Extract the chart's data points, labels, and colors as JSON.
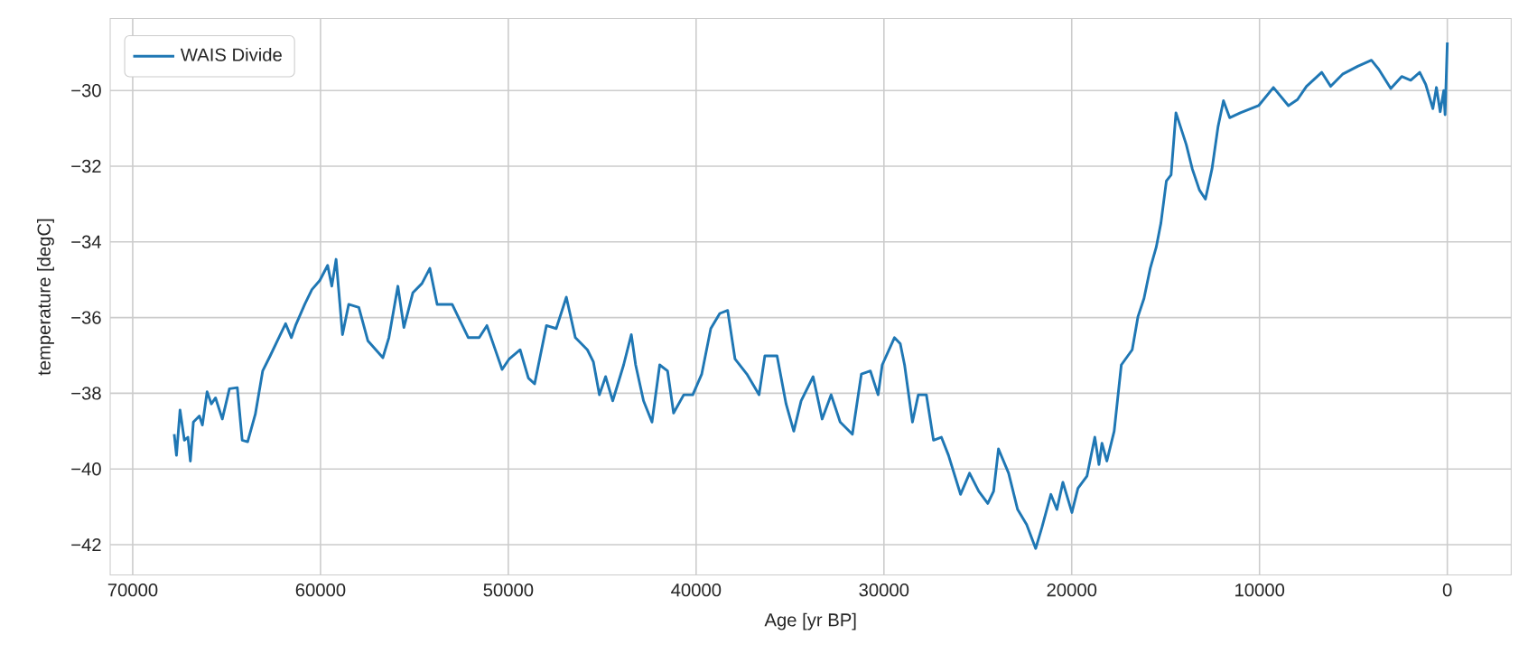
{
  "chart_data": {
    "type": "line",
    "xlabel": "Age [yr BP]",
    "ylabel": "temperature [degC]",
    "xlim": [
      71200,
      -3400
    ],
    "ylim": [
      -42.8,
      -28.1
    ],
    "xticks": [
      70000,
      60000,
      50000,
      40000,
      30000,
      20000,
      10000,
      0
    ],
    "yticks": [
      {
        "value": -42,
        "label": "−42"
      },
      {
        "value": -40,
        "label": "−40"
      },
      {
        "value": -38,
        "label": "−38"
      },
      {
        "value": -36,
        "label": "−36"
      },
      {
        "value": -34,
        "label": "−34"
      },
      {
        "value": -32,
        "label": "−32"
      },
      {
        "value": -30,
        "label": "−30"
      }
    ],
    "grid": true,
    "legend": "top left",
    "line_style": "solid",
    "marker": "none",
    "series": [
      {
        "name": "WAIS Divide",
        "color": "#1f77b4",
        "x": [
          67790,
          67670,
          67480,
          67250,
          67060,
          66930,
          66770,
          66450,
          66290,
          66040,
          65810,
          65590,
          65230,
          64850,
          64430,
          64170,
          63880,
          63470,
          63080,
          62670,
          62220,
          61860,
          61550,
          61330,
          60840,
          60460,
          60040,
          59620,
          59400,
          59170,
          58830,
          58500,
          57960,
          57480,
          56680,
          56360,
          55880,
          55560,
          55080,
          54600,
          54180,
          53790,
          52990,
          52130,
          51550,
          51140,
          50750,
          50330,
          49950,
          49370,
          48930,
          48600,
          47970,
          47450,
          46910,
          46430,
          45790,
          45470,
          45150,
          44820,
          44440,
          43860,
          43450,
          43220,
          42800,
          42350,
          41940,
          41520,
          41200,
          40660,
          40180,
          39700,
          39220,
          38740,
          38320,
          37930,
          37300,
          36650,
          36340,
          35690,
          35210,
          34800,
          34410,
          33770,
          33290,
          32810,
          32330,
          31680,
          31200,
          30720,
          30310,
          30090,
          29440,
          29130,
          28900,
          28480,
          28170,
          27740,
          27360,
          26940,
          26560,
          25920,
          25440,
          24950,
          24470,
          24160,
          23900,
          23360,
          22880,
          22400,
          21920,
          21590,
          21110,
          20790,
          20470,
          19990,
          19670,
          19190,
          18770,
          18550,
          18390,
          18130,
          17740,
          17360,
          16780,
          16470,
          16150,
          15820,
          15500,
          15250,
          14960,
          14710,
          14450,
          13900,
          13580,
          13200,
          12880,
          12530,
          12210,
          11920,
          11590,
          11020,
          10050,
          9260,
          8460,
          7980,
          7500,
          6690,
          6210,
          5580,
          4770,
          4040,
          3650,
          3010,
          2430,
          1950,
          1470,
          1150,
          770,
          580,
          380,
          190,
          120,
          0
        ],
        "values": [
          -39.08,
          -39.64,
          -38.44,
          -39.24,
          -39.16,
          -39.79,
          -38.76,
          -38.6,
          -38.84,
          -37.96,
          -38.28,
          -38.12,
          -38.68,
          -37.88,
          -37.85,
          -39.24,
          -39.28,
          -38.55,
          -37.41,
          -37.0,
          -36.53,
          -36.16,
          -36.53,
          -36.21,
          -35.65,
          -35.26,
          -35.02,
          -34.62,
          -35.17,
          -34.46,
          -36.45,
          -35.65,
          -35.73,
          -36.61,
          -37.06,
          -36.53,
          -35.17,
          -36.26,
          -35.34,
          -35.1,
          -34.7,
          -35.65,
          -35.65,
          -36.53,
          -36.53,
          -36.21,
          -36.77,
          -37.37,
          -37.09,
          -36.85,
          -37.6,
          -37.75,
          -36.21,
          -36.29,
          -35.46,
          -36.53,
          -36.85,
          -37.17,
          -38.04,
          -37.56,
          -38.2,
          -37.25,
          -36.45,
          -37.25,
          -38.2,
          -38.76,
          -37.25,
          -37.41,
          -38.52,
          -38.04,
          -38.04,
          -37.49,
          -36.29,
          -35.89,
          -35.81,
          -37.09,
          -37.49,
          -38.04,
          -37.01,
          -37.01,
          -38.28,
          -39.0,
          -38.2,
          -37.56,
          -38.68,
          -38.04,
          -38.76,
          -39.08,
          -37.49,
          -37.41,
          -38.04,
          -37.25,
          -36.53,
          -36.69,
          -37.25,
          -38.76,
          -38.04,
          -38.04,
          -39.24,
          -39.16,
          -39.64,
          -40.67,
          -40.11,
          -40.59,
          -40.91,
          -40.59,
          -39.47,
          -40.11,
          -41.07,
          -41.47,
          -42.1,
          -41.55,
          -40.67,
          -41.07,
          -40.35,
          -41.15,
          -40.51,
          -40.19,
          -39.16,
          -39.88,
          -39.32,
          -39.79,
          -39.0,
          -37.25,
          -36.85,
          -35.97,
          -35.49,
          -34.7,
          -34.14,
          -33.5,
          -32.39,
          -32.23,
          -30.59,
          -31.43,
          -32.07,
          -32.63,
          -32.87,
          -32.07,
          -30.96,
          -30.27,
          -30.72,
          -30.59,
          -30.4,
          -29.92,
          -30.4,
          -30.24,
          -29.89,
          -29.52,
          -29.89,
          -29.57,
          -29.36,
          -29.2,
          -29.44,
          -29.95,
          -29.63,
          -29.73,
          -29.52,
          -29.84,
          -30.48,
          -29.92,
          -30.56,
          -30.0,
          -30.64,
          -28.73
        ]
      }
    ]
  }
}
